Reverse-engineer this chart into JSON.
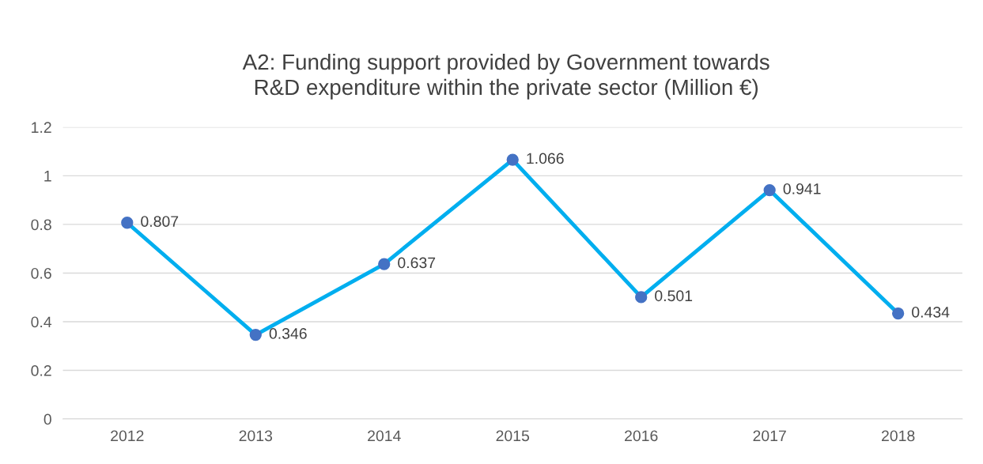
{
  "chart_data": {
    "type": "line",
    "title": "A2: Funding support provided by Government towards\nR&D expenditure within the private sector (Million €)",
    "categories": [
      "2012",
      "2013",
      "2014",
      "2015",
      "2016",
      "2017",
      "2018"
    ],
    "series": [
      {
        "color": "#00aeef",
        "colors": [
          "#4472c4",
          "#4472c4",
          "#4472c4",
          "#4472c4",
          "#4472c4",
          "#4472c4",
          "#4472c4"
        ],
        "values": [
          0.807,
          0.346,
          0.637,
          1.066,
          0.501,
          0.941,
          0.434
        ]
      }
    ],
    "ylim": [
      0,
      1.2
    ],
    "yticks": [
      0,
      0.2,
      0.4,
      0.6,
      0.8,
      1,
      1.2
    ],
    "grid": "y",
    "marker": "circle",
    "line_style": "solid",
    "data_labels": true,
    "legend": false
  }
}
